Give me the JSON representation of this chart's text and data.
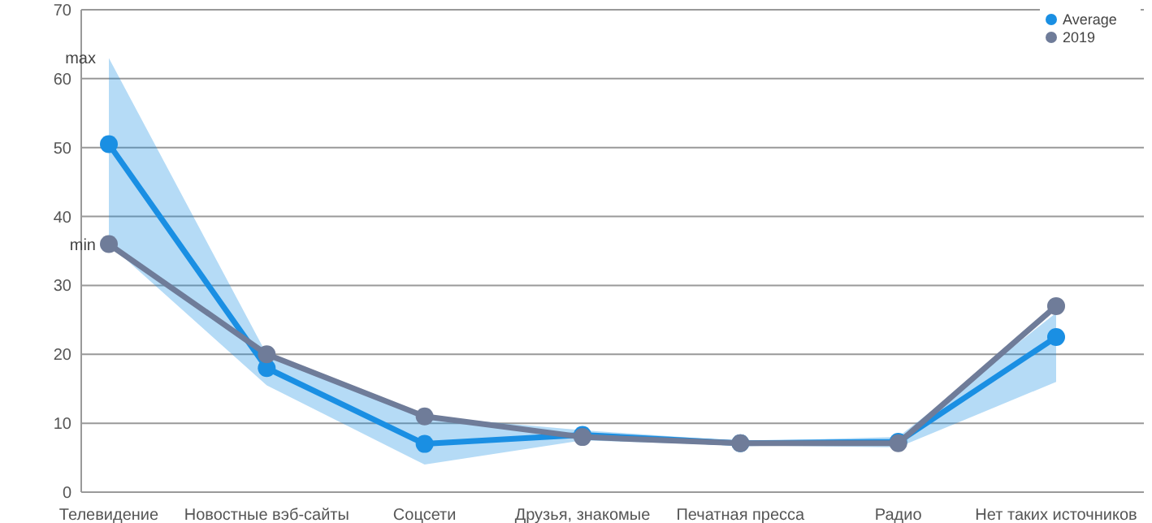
{
  "chart_data": {
    "type": "line",
    "categories": [
      "Телевидение",
      "Новостные вэб-сайты",
      "Соцсети",
      "Друзья, знакомые",
      "Печатная пресса",
      "Радио",
      "Нет таких источников"
    ],
    "series": [
      {
        "name": "Average",
        "color": "#1a8fe3",
        "values": [
          50.5,
          18,
          7,
          8.3,
          7.1,
          7.3,
          22.5
        ],
        "lower": [
          36,
          15.5,
          4,
          7.5,
          6.8,
          6.5,
          16
        ],
        "upper": [
          63,
          20,
          11,
          9,
          7.4,
          8,
          26
        ]
      },
      {
        "name": "2019",
        "color": "#6f7c99",
        "values": [
          36,
          20,
          11,
          8,
          7.1,
          7.1,
          27
        ]
      }
    ],
    "ylim": [
      0,
      70
    ],
    "yticks": [
      0,
      10,
      20,
      30,
      40,
      50,
      60,
      70
    ],
    "grid": "y",
    "legend": "top right",
    "marker": "circle",
    "annotations": [
      {
        "text": "max",
        "x": "Телевидение",
        "y": 63
      },
      {
        "text": "min",
        "x": "Телевидение",
        "y": 36
      }
    ]
  }
}
